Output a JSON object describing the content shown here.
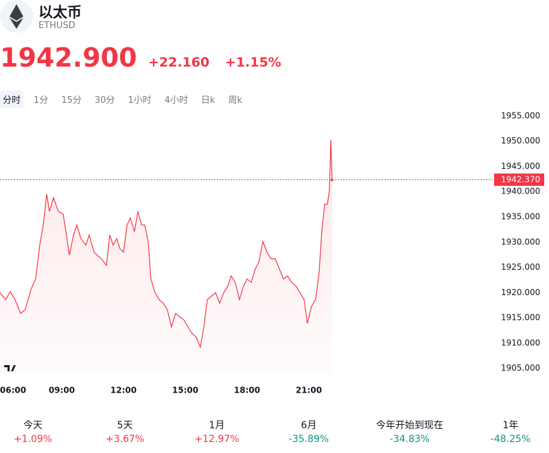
{
  "header": {
    "title": "以太币",
    "symbol": "ETHUSD",
    "price": "1942.900",
    "change": "+22.160",
    "change_pct": "+1.15%"
  },
  "tabs": {
    "items": [
      "分时",
      "1分",
      "15分",
      "30分",
      "1小时",
      "4小时",
      "日k",
      "周k"
    ],
    "active": 0
  },
  "chart_data": {
    "type": "line",
    "color": "#f23645",
    "x": [
      6.0,
      6.27,
      6.5,
      6.73,
      7.0,
      7.23,
      7.5,
      7.73,
      7.93,
      8.1,
      8.27,
      8.4,
      8.6,
      8.83,
      9.07,
      9.23,
      9.37,
      9.57,
      9.73,
      9.93,
      10.17,
      10.33,
      10.57,
      10.73,
      10.93,
      11.17,
      11.33,
      11.5,
      11.67,
      11.83,
      12.0,
      12.17,
      12.33,
      12.53,
      12.7,
      12.87,
      13.03,
      13.2,
      13.33,
      13.53,
      13.73,
      13.93,
      14.13,
      14.33,
      14.53,
      14.73,
      14.93,
      15.13,
      15.33,
      15.53,
      15.73,
      15.9,
      16.07,
      16.27,
      16.47,
      16.67,
      16.87,
      17.07,
      17.23,
      17.43,
      17.63,
      17.83,
      18.0,
      18.2,
      18.4,
      18.57,
      18.77,
      18.97,
      19.17,
      19.37,
      19.57,
      19.77,
      19.97,
      20.17,
      20.37,
      20.57,
      20.77,
      20.93,
      21.13,
      21.33,
      21.5,
      21.63,
      21.77,
      21.9,
      22.0,
      22.07,
      22.13
    ],
    "series": [
      {
        "name": "ETHUSD",
        "values": [
          1920.0,
          1918.6,
          1920.2,
          1918.6,
          1915.9,
          1916.6,
          1920.6,
          1922.7,
          1929.4,
          1933.4,
          1939.5,
          1936.1,
          1938.8,
          1936.1,
          1935.5,
          1931.4,
          1927.4,
          1931.4,
          1933.4,
          1930.7,
          1929.4,
          1931.4,
          1928.0,
          1927.4,
          1926.7,
          1925.4,
          1931.4,
          1929.4,
          1930.7,
          1928.7,
          1928.0,
          1933.4,
          1934.8,
          1932.1,
          1936.1,
          1933.4,
          1933.4,
          1930.1,
          1922.7,
          1920.0,
          1918.6,
          1917.9,
          1916.6,
          1913.2,
          1915.9,
          1915.2,
          1914.6,
          1913.2,
          1911.9,
          1911.2,
          1909.2,
          1913.2,
          1918.6,
          1919.3,
          1920.0,
          1917.9,
          1920.0,
          1921.3,
          1923.3,
          1922.0,
          1918.6,
          1921.3,
          1922.7,
          1922.0,
          1924.7,
          1926.0,
          1930.1,
          1928.0,
          1926.7,
          1926.7,
          1924.7,
          1922.7,
          1923.3,
          1922.0,
          1921.3,
          1920.0,
          1918.6,
          1913.9,
          1917.3,
          1918.6,
          1924.0,
          1932.1,
          1937.5,
          1937.5,
          1940.2,
          1950.3,
          1942.3
        ]
      }
    ],
    "xlim": [
      6,
      30
    ],
    "ylim": [
      1902.5,
      1957.3
    ],
    "xticks": [
      {
        "value": 6,
        "label": "06:00"
      },
      {
        "value": 9,
        "label": "09:00"
      },
      {
        "value": 12,
        "label": "12:00"
      },
      {
        "value": 15,
        "label": "15:00"
      },
      {
        "value": 18,
        "label": "18:00"
      },
      {
        "value": 21,
        "label": "21:00"
      }
    ],
    "yticks": [
      {
        "value": 1905,
        "label": "1905.000"
      },
      {
        "value": 1910,
        "label": "1910.000"
      },
      {
        "value": 1915,
        "label": "1915.000"
      },
      {
        "value": 1920,
        "label": "1920.000"
      },
      {
        "value": 1925,
        "label": "1925.000"
      },
      {
        "value": 1930,
        "label": "1930.000"
      },
      {
        "value": 1935,
        "label": "1935.000"
      },
      {
        "value": 1940,
        "label": "1940.000"
      },
      {
        "value": 1945,
        "label": "1945.000"
      },
      {
        "value": 1950,
        "label": "1950.000"
      },
      {
        "value": 1955,
        "label": "1955.000"
      }
    ],
    "price_line": {
      "value": 1942.37,
      "label": "1942.370"
    }
  },
  "performance": [
    {
      "label": "今天",
      "value": "+1.09%"
    },
    {
      "label": "5天",
      "value": "+3.67%"
    },
    {
      "label": "1月",
      "value": "+12.97%"
    },
    {
      "label": "6月",
      "value": "-35.89%"
    },
    {
      "label": "今年开始到现在",
      "value": "-34.83%"
    },
    {
      "label": "1年",
      "value": "-48.25%"
    }
  ]
}
